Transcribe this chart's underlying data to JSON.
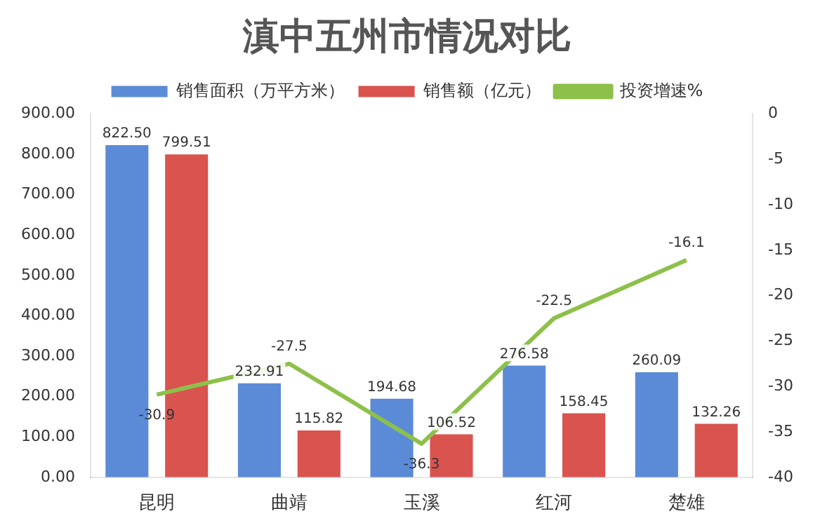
{
  "chart_data": {
    "type": "bar",
    "title": "滇中五州市情况对比",
    "categories": [
      "昆明",
      "曲靖",
      "玉溪",
      "红河",
      "楚雄"
    ],
    "series": [
      {
        "name": "销售面积（万平方米）",
        "color": "#5b8bd6",
        "values": [
          822.5,
          232.91,
          194.68,
          276.58,
          260.09
        ],
        "value_labels": [
          "822.50",
          "232.91",
          "194.68",
          "276.58",
          "260.09"
        ]
      },
      {
        "name": "销售额（亿元）",
        "color": "#d9534f",
        "values": [
          799.51,
          115.82,
          106.52,
          158.45,
          132.26
        ],
        "value_labels": [
          "799.51",
          "115.82",
          "106.52",
          "158.45",
          "132.26"
        ]
      },
      {
        "name": "投资增速%",
        "type": "line",
        "axis": "y2",
        "color": "#8dc04a",
        "values": [
          -30.9,
          -27.5,
          -36.3,
          -22.5,
          -16.1
        ],
        "value_labels": [
          "-30.9",
          "-27.5",
          "-36.3",
          "-22.5",
          "-16.1"
        ]
      }
    ],
    "ylim": [
      0,
      900
    ],
    "yticks": [
      {
        "value": 0,
        "label": "0.00"
      },
      {
        "value": 100,
        "label": "100.00"
      },
      {
        "value": 200,
        "label": "200.00"
      },
      {
        "value": 300,
        "label": "300.00"
      },
      {
        "value": 400,
        "label": "400.00"
      },
      {
        "value": 500,
        "label": "500.00"
      },
      {
        "value": 600,
        "label": "600.00"
      },
      {
        "value": 700,
        "label": "700.00"
      },
      {
        "value": 800,
        "label": "800.00"
      },
      {
        "value": 900,
        "label": "900.00"
      }
    ],
    "y2lim": [
      -40,
      0
    ],
    "y2ticks": [
      -40,
      -35,
      -30,
      -25,
      -20,
      -15,
      -10,
      -5,
      0
    ],
    "legend": "top",
    "grid": false,
    "marker": "none",
    "line_style": "solid"
  }
}
